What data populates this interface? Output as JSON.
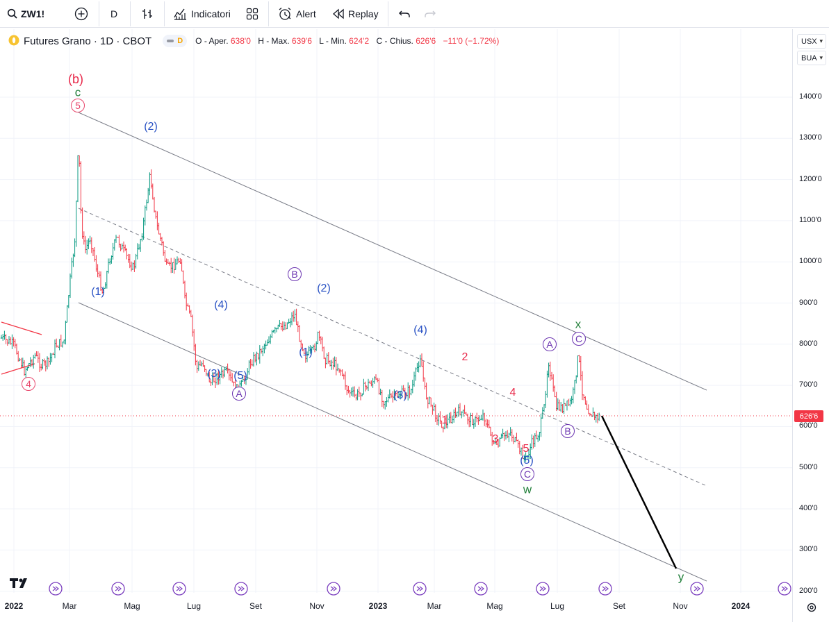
{
  "toolbar": {
    "symbol": "ZW1!",
    "interval": "D",
    "indicators_label": "Indicatori",
    "alert_label": "Alert",
    "replay_label": "Replay",
    "icons": [
      "search-icon",
      "add-symbol-icon",
      "bar-style-icon",
      "indicators-icon",
      "layouts-icon",
      "alert-icon",
      "replay-icon",
      "undo-icon",
      "redo-icon"
    ]
  },
  "legend": {
    "title": "Futures Grano · 1D · CBOT",
    "badge": "D",
    "o_label": "O - Aper.",
    "o_value": "638'0",
    "h_label": "H - Max.",
    "h_value": "639'6",
    "l_label": "L - Min.",
    "l_value": "624'2",
    "c_label": "C - Chius.",
    "c_value": "626'6",
    "change": "−11'0 (−1.72%)"
  },
  "price_scale": {
    "currency": "USX",
    "unit": "BUA",
    "ticks": [
      "1400'0",
      "1300'0",
      "1200'0",
      "1100'0",
      "1000'0",
      "900'0",
      "800'0",
      "700'0",
      "600'0",
      "500'0",
      "400'0",
      "300'0",
      "200'0"
    ],
    "last_price": "626'6"
  },
  "time_scale": {
    "ticks": [
      {
        "label": "2022",
        "bold": true
      },
      {
        "label": "Mar",
        "bold": false
      },
      {
        "label": "Mag",
        "bold": false
      },
      {
        "label": "Lug",
        "bold": false
      },
      {
        "label": "Set",
        "bold": false
      },
      {
        "label": "Nov",
        "bold": false
      },
      {
        "label": "2023",
        "bold": true
      },
      {
        "label": "Mar",
        "bold": false
      },
      {
        "label": "Mag",
        "bold": false
      },
      {
        "label": "Lug",
        "bold": false
      },
      {
        "label": "Set",
        "bold": false
      },
      {
        "label": "Nov",
        "bold": false
      },
      {
        "label": "2024",
        "bold": true
      }
    ]
  },
  "wave_labels": {
    "b_paren": "(b)",
    "c_top": "c",
    "five_circle": "5",
    "p2_a": "(2)",
    "p1_a": "(1)",
    "p4_a": "(4)",
    "p3_a": "(3)",
    "p5_a": "(5)",
    "A_circle_1": "A",
    "B_circle": "B",
    "p2_b": "(2)",
    "p1_b": "(1)",
    "p4_b": "(4)",
    "p3_b": "(3)",
    "r2": "2",
    "r1": "1",
    "r4": "4",
    "r3": "3",
    "r5": "5",
    "p5_b": "(5)",
    "C_circle_1": "C",
    "w": "w",
    "A_circle_2": "A",
    "x": "x",
    "C_circle_2": "C",
    "B_circle_2": "B",
    "four_circle": "4",
    "y": "y"
  },
  "colors": {
    "up": "#089981",
    "down": "#f23645",
    "wave_blue": "#2952c4",
    "wave_red": "#e8294a",
    "wave_green": "#23803b",
    "wave_purple": "#6a33b0",
    "channel": "#787b86"
  }
}
